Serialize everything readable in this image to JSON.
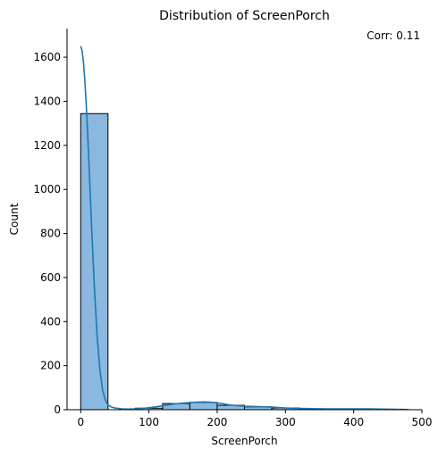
{
  "chart_data": {
    "type": "bar",
    "subtype": "histogram-with-kde",
    "title": "Distribution of ScreenPorch",
    "xlabel": "ScreenPorch",
    "ylabel": "Count",
    "annotation": "Corr: 0.11",
    "xlim": [
      -20,
      500
    ],
    "ylim": [
      0,
      1730
    ],
    "xticks": [
      0,
      100,
      200,
      300,
      400,
      500
    ],
    "yticks": [
      0,
      200,
      400,
      600,
      800,
      1000,
      1200,
      1400,
      1600
    ],
    "grid": false,
    "bins": [
      {
        "x0": 0,
        "x1": 40,
        "count": 1344
      },
      {
        "x0": 40,
        "x1": 80,
        "count": 0
      },
      {
        "x0": 80,
        "x1": 120,
        "count": 7
      },
      {
        "x0": 120,
        "x1": 160,
        "count": 28
      },
      {
        "x0": 160,
        "x1": 200,
        "count": 33
      },
      {
        "x0": 200,
        "x1": 240,
        "count": 20
      },
      {
        "x0": 240,
        "x1": 280,
        "count": 13
      },
      {
        "x0": 280,
        "x1": 320,
        "count": 8
      },
      {
        "x0": 320,
        "x1": 360,
        "count": 2
      },
      {
        "x0": 360,
        "x1": 400,
        "count": 1
      },
      {
        "x0": 400,
        "x1": 440,
        "count": 3
      },
      {
        "x0": 440,
        "x1": 480,
        "count": 1
      }
    ],
    "kde": {
      "x": [
        0,
        2,
        4,
        6,
        8,
        10,
        13,
        16,
        20,
        24,
        28,
        32,
        36,
        40,
        45,
        50,
        60,
        70,
        80,
        90,
        100,
        110,
        120,
        130,
        140,
        150,
        160,
        170,
        180,
        190,
        200,
        210,
        220,
        230,
        240,
        250,
        260,
        270,
        280,
        290,
        300,
        320,
        340,
        360,
        380,
        400,
        420,
        440,
        460,
        480
      ],
      "y": [
        1650,
        1630,
        1580,
        1500,
        1390,
        1270,
        1050,
        830,
        560,
        340,
        185,
        90,
        45,
        22,
        12,
        8,
        4,
        3,
        4,
        6,
        9,
        13,
        18,
        23,
        27,
        30,
        32,
        34,
        35,
        34,
        31,
        26,
        21,
        18,
        16,
        15,
        14,
        13,
        12,
        10,
        8,
        6,
        5,
        4,
        4,
        4,
        4,
        3,
        2,
        1
      ]
    },
    "colors": {
      "bar_fill": "#8ab8de",
      "bar_edge": "#000000",
      "kde_line": "#1f77b4"
    }
  }
}
